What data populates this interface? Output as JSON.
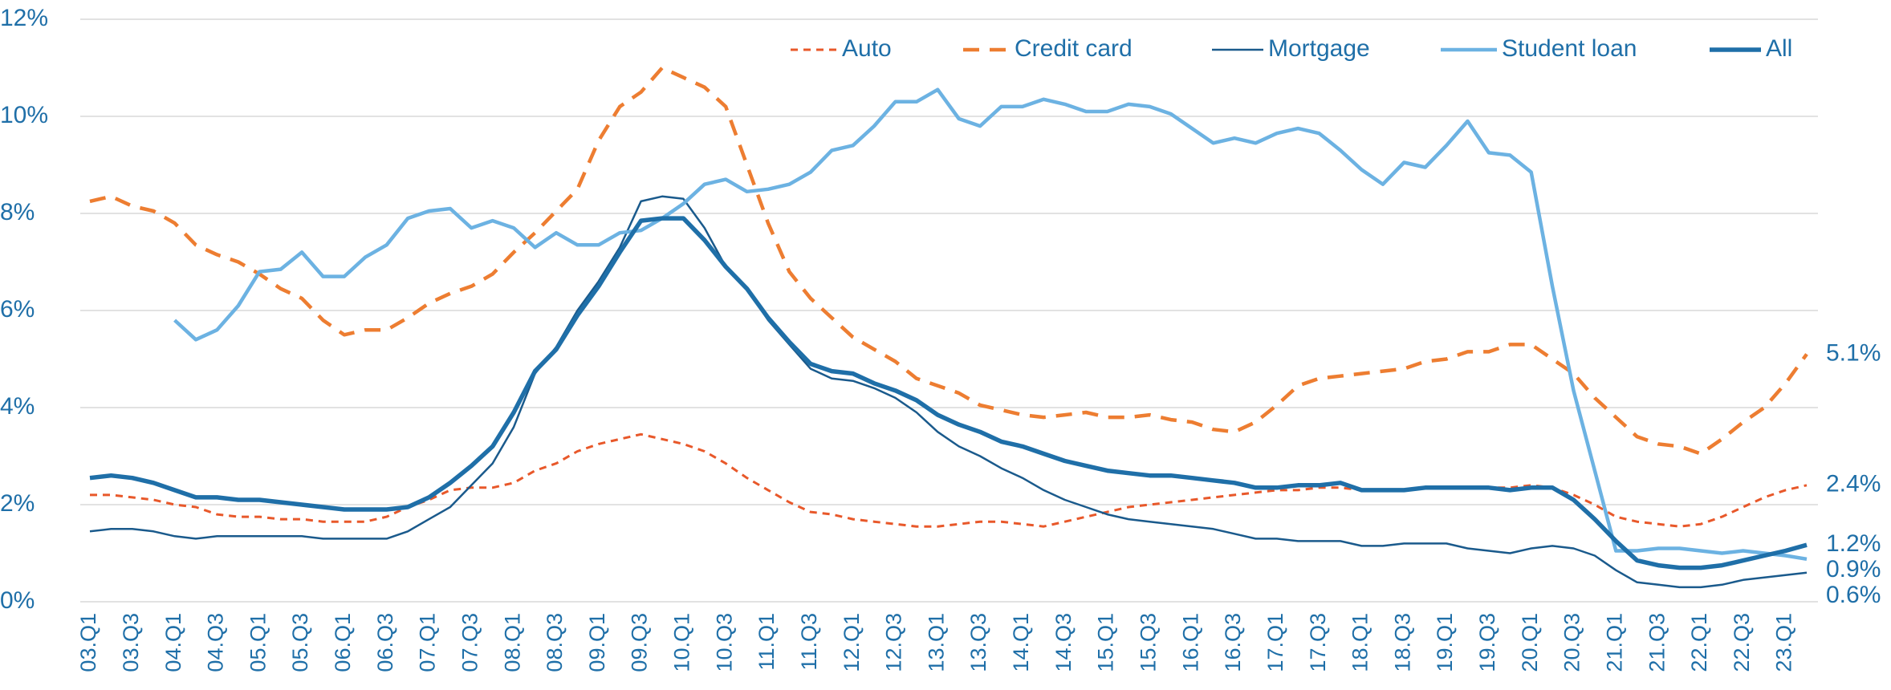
{
  "chart_data": {
    "type": "line",
    "categories": [
      "03.Q1",
      null,
      "03.Q3",
      null,
      "04.Q1",
      null,
      "04.Q3",
      null,
      "05.Q1",
      null,
      "05.Q3",
      null,
      "06.Q1",
      null,
      "06.Q3",
      null,
      "07.Q1",
      null,
      "07.Q3",
      null,
      "08.Q1",
      null,
      "08.Q3",
      null,
      "09.Q1",
      null,
      "09.Q3",
      null,
      "10.Q1",
      null,
      "10.Q3",
      null,
      "11.Q1",
      null,
      "11.Q3",
      null,
      "12.Q1",
      null,
      "12.Q3",
      null,
      "13.Q1",
      null,
      "13.Q3",
      null,
      "14.Q1",
      null,
      "14.Q3",
      null,
      "15.Q1",
      null,
      "15.Q3",
      null,
      "16.Q1",
      null,
      "16.Q3",
      null,
      "17.Q1",
      null,
      "17.Q3",
      null,
      "18.Q1",
      null,
      "18.Q3",
      null,
      "19.Q1",
      null,
      "19.Q3",
      null,
      "20.Q1",
      null,
      "20.Q3",
      null,
      "21.Q1",
      null,
      "21.Q3",
      null,
      "22.Q1",
      null,
      "22.Q3",
      null,
      "23.Q1",
      null
    ],
    "series": [
      {
        "name": "Auto",
        "color": "#e8582a",
        "dash": "short",
        "values": [
          2.2,
          2.2,
          2.15,
          2.1,
          2.0,
          1.95,
          1.8,
          1.75,
          1.75,
          1.7,
          1.7,
          1.65,
          1.65,
          1.65,
          1.75,
          1.95,
          2.1,
          2.3,
          2.35,
          2.35,
          2.45,
          2.7,
          2.85,
          3.1,
          3.25,
          3.35,
          3.45,
          3.35,
          3.25,
          3.1,
          2.85,
          2.55,
          2.3,
          2.05,
          1.85,
          1.8,
          1.7,
          1.65,
          1.6,
          1.55,
          1.55,
          1.6,
          1.65,
          1.65,
          1.6,
          1.55,
          1.65,
          1.75,
          1.85,
          1.95,
          2.0,
          2.05,
          2.1,
          2.15,
          2.2,
          2.25,
          2.3,
          2.3,
          2.35,
          2.35,
          2.3,
          2.3,
          2.3,
          2.35,
          2.35,
          2.35,
          2.35,
          2.35,
          2.4,
          2.35,
          2.2,
          2.0,
          1.75,
          1.65,
          1.6,
          1.55,
          1.6,
          1.75,
          1.95,
          2.15,
          2.3,
          2.4
        ],
        "value_labels": [
          null,
          null,
          null,
          null,
          null,
          null,
          null,
          null,
          null,
          null,
          null,
          null,
          null,
          null,
          null,
          null,
          null,
          null,
          null,
          null,
          null,
          null,
          null,
          null,
          null,
          null,
          null,
          null,
          null,
          null,
          null,
          null,
          null,
          null,
          null,
          null,
          null,
          null,
          null,
          null,
          null,
          null,
          null,
          null,
          null,
          null,
          null,
          null,
          null,
          null,
          null,
          null,
          null,
          null,
          null,
          null,
          null,
          null,
          null,
          null,
          null,
          null,
          null,
          null,
          null,
          null,
          null,
          null,
          null,
          null,
          null,
          null,
          null,
          null,
          null,
          null,
          null,
          null,
          null,
          null,
          null,
          "2.4%"
        ]
      },
      {
        "name": "Credit card",
        "color": "#ed7d31",
        "dash": "long",
        "values": [
          8.25,
          8.35,
          8.15,
          8.05,
          7.8,
          7.35,
          7.15,
          7.0,
          6.75,
          6.45,
          6.25,
          5.8,
          5.5,
          5.6,
          5.6,
          5.85,
          6.15,
          6.35,
          6.5,
          6.75,
          7.2,
          7.6,
          8.05,
          8.5,
          9.5,
          10.2,
          10.5,
          11.0,
          10.8,
          10.6,
          10.2,
          9.0,
          7.8,
          6.8,
          6.25,
          5.85,
          5.45,
          5.2,
          4.95,
          4.6,
          4.45,
          4.3,
          4.05,
          3.95,
          3.85,
          3.8,
          3.85,
          3.9,
          3.8,
          3.8,
          3.85,
          3.75,
          3.7,
          3.55,
          3.5,
          3.7,
          4.05,
          4.45,
          4.6,
          4.65,
          4.7,
          4.75,
          4.8,
          4.95,
          5.0,
          5.15,
          5.15,
          5.3,
          5.3,
          5.0,
          4.7,
          4.2,
          3.8,
          3.4,
          3.25,
          3.2,
          3.05,
          3.35,
          3.7,
          4.0,
          4.5,
          5.1
        ],
        "value_labels": [
          null,
          null,
          null,
          null,
          null,
          null,
          null,
          null,
          null,
          null,
          null,
          null,
          null,
          null,
          null,
          null,
          null,
          null,
          null,
          null,
          null,
          null,
          null,
          null,
          null,
          null,
          null,
          null,
          null,
          null,
          null,
          null,
          null,
          null,
          null,
          null,
          null,
          null,
          null,
          null,
          null,
          null,
          null,
          null,
          null,
          null,
          null,
          null,
          null,
          null,
          null,
          null,
          null,
          null,
          null,
          null,
          null,
          null,
          null,
          null,
          null,
          null,
          null,
          null,
          null,
          null,
          null,
          null,
          null,
          null,
          null,
          null,
          null,
          null,
          null,
          null,
          null,
          null,
          null,
          null,
          null,
          "5.1%"
        ]
      },
      {
        "name": "Mortgage",
        "color": "#1a5a8c",
        "dash": "none",
        "values": [
          1.45,
          1.5,
          1.5,
          1.45,
          1.35,
          1.3,
          1.35,
          1.35,
          1.35,
          1.35,
          1.35,
          1.3,
          1.3,
          1.3,
          1.3,
          1.45,
          1.7,
          1.95,
          2.4,
          2.85,
          3.6,
          4.7,
          5.25,
          6.0,
          6.6,
          7.3,
          8.25,
          8.35,
          8.3,
          7.7,
          6.9,
          6.45,
          5.8,
          5.3,
          4.8,
          4.6,
          4.55,
          4.4,
          4.2,
          3.9,
          3.5,
          3.2,
          3.0,
          2.75,
          2.55,
          2.3,
          2.1,
          1.95,
          1.8,
          1.7,
          1.65,
          1.6,
          1.55,
          1.5,
          1.4,
          1.3,
          1.3,
          1.25,
          1.25,
          1.25,
          1.15,
          1.15,
          1.2,
          1.2,
          1.2,
          1.1,
          1.05,
          1.0,
          1.1,
          1.15,
          1.1,
          0.95,
          0.65,
          0.4,
          0.35,
          0.3,
          0.3,
          0.35,
          0.45,
          0.5,
          0.55,
          0.6
        ],
        "value_labels": [
          null,
          null,
          null,
          null,
          null,
          null,
          null,
          null,
          null,
          null,
          null,
          null,
          null,
          null,
          null,
          null,
          null,
          null,
          null,
          null,
          null,
          null,
          null,
          null,
          null,
          null,
          null,
          null,
          null,
          null,
          null,
          null,
          null,
          null,
          null,
          null,
          null,
          null,
          null,
          null,
          null,
          null,
          null,
          null,
          null,
          null,
          null,
          null,
          null,
          null,
          null,
          null,
          null,
          null,
          null,
          null,
          null,
          null,
          null,
          null,
          null,
          null,
          null,
          null,
          null,
          null,
          null,
          null,
          null,
          null,
          null,
          null,
          null,
          null,
          null,
          null,
          null,
          null,
          null,
          null,
          null,
          "0.6%"
        ]
      },
      {
        "name": "Student loan",
        "color": "#6cb2e2",
        "dash": "none",
        "values": [
          null,
          null,
          null,
          null,
          5.8,
          5.4,
          5.6,
          6.1,
          6.8,
          6.85,
          7.2,
          6.7,
          6.7,
          7.1,
          7.35,
          7.9,
          8.05,
          8.1,
          7.7,
          7.85,
          7.7,
          7.3,
          7.6,
          7.35,
          7.35,
          7.6,
          7.65,
          7.9,
          8.2,
          8.6,
          8.7,
          8.45,
          8.5,
          8.6,
          8.85,
          9.3,
          9.4,
          9.8,
          10.3,
          10.3,
          10.55,
          9.95,
          9.8,
          10.2,
          10.2,
          10.35,
          10.25,
          10.1,
          10.1,
          10.25,
          10.2,
          10.05,
          9.75,
          9.45,
          9.55,
          9.45,
          9.65,
          9.75,
          9.65,
          9.3,
          8.9,
          8.6,
          9.05,
          8.95,
          9.4,
          9.9,
          9.25,
          9.2,
          8.85,
          6.5,
          4.35,
          2.7,
          1.05,
          1.05,
          1.1,
          1.1,
          1.05,
          1.0,
          1.05,
          1.0,
          0.95,
          0.88
        ],
        "value_labels": [
          null,
          null,
          null,
          null,
          null,
          null,
          null,
          null,
          null,
          null,
          null,
          null,
          null,
          null,
          null,
          null,
          null,
          null,
          null,
          null,
          null,
          null,
          null,
          null,
          null,
          null,
          null,
          null,
          null,
          null,
          null,
          null,
          null,
          null,
          null,
          null,
          null,
          null,
          null,
          null,
          null,
          null,
          null,
          null,
          null,
          null,
          null,
          null,
          null,
          null,
          null,
          null,
          null,
          null,
          null,
          null,
          null,
          null,
          null,
          null,
          null,
          null,
          null,
          null,
          null,
          null,
          null,
          null,
          null,
          null,
          null,
          null,
          null,
          null,
          null,
          null,
          null,
          null,
          null,
          null,
          null,
          "0.9%"
        ]
      },
      {
        "name": "All",
        "color": "#1f6fa8",
        "dash": "none",
        "values": [
          2.55,
          2.6,
          2.55,
          2.45,
          2.3,
          2.15,
          2.15,
          2.1,
          2.1,
          2.05,
          2.0,
          1.95,
          1.9,
          1.9,
          1.9,
          1.95,
          2.15,
          2.45,
          2.8,
          3.2,
          3.9,
          4.75,
          5.2,
          5.9,
          6.5,
          7.2,
          7.85,
          7.9,
          7.9,
          7.45,
          6.9,
          6.45,
          5.85,
          5.35,
          4.9,
          4.75,
          4.7,
          4.5,
          4.35,
          4.15,
          3.85,
          3.65,
          3.5,
          3.3,
          3.2,
          3.05,
          2.9,
          2.8,
          2.7,
          2.65,
          2.6,
          2.6,
          2.55,
          2.5,
          2.45,
          2.35,
          2.35,
          2.4,
          2.4,
          2.45,
          2.3,
          2.3,
          2.3,
          2.35,
          2.35,
          2.35,
          2.35,
          2.3,
          2.35,
          2.35,
          2.1,
          1.7,
          1.25,
          0.85,
          0.75,
          0.7,
          0.7,
          0.75,
          0.85,
          0.95,
          1.05,
          1.17
        ],
        "value_labels": [
          null,
          null,
          null,
          null,
          null,
          null,
          null,
          null,
          null,
          null,
          null,
          null,
          null,
          null,
          null,
          null,
          null,
          null,
          null,
          null,
          null,
          null,
          null,
          null,
          null,
          null,
          null,
          null,
          null,
          null,
          null,
          null,
          null,
          null,
          null,
          null,
          null,
          null,
          null,
          null,
          null,
          null,
          null,
          null,
          null,
          null,
          null,
          null,
          null,
          null,
          null,
          null,
          null,
          null,
          null,
          null,
          null,
          null,
          null,
          null,
          null,
          null,
          null,
          null,
          null,
          null,
          null,
          null,
          null,
          null,
          null,
          null,
          null,
          null,
          null,
          null,
          null,
          null,
          null,
          null,
          null,
          "1.2%"
        ]
      }
    ],
    "ylim": [
      0,
      12
    ],
    "yticks": [
      {
        "value": 0,
        "label": "0%"
      },
      {
        "value": 2,
        "label": "2%"
      },
      {
        "value": 4,
        "label": "4%"
      },
      {
        "value": 6,
        "label": "6%"
      },
      {
        "value": 8,
        "label": "8%"
      },
      {
        "value": 10,
        "label": "10%"
      },
      {
        "value": 12,
        "label": "12%"
      }
    ],
    "grid": true,
    "legend": "top-right"
  }
}
